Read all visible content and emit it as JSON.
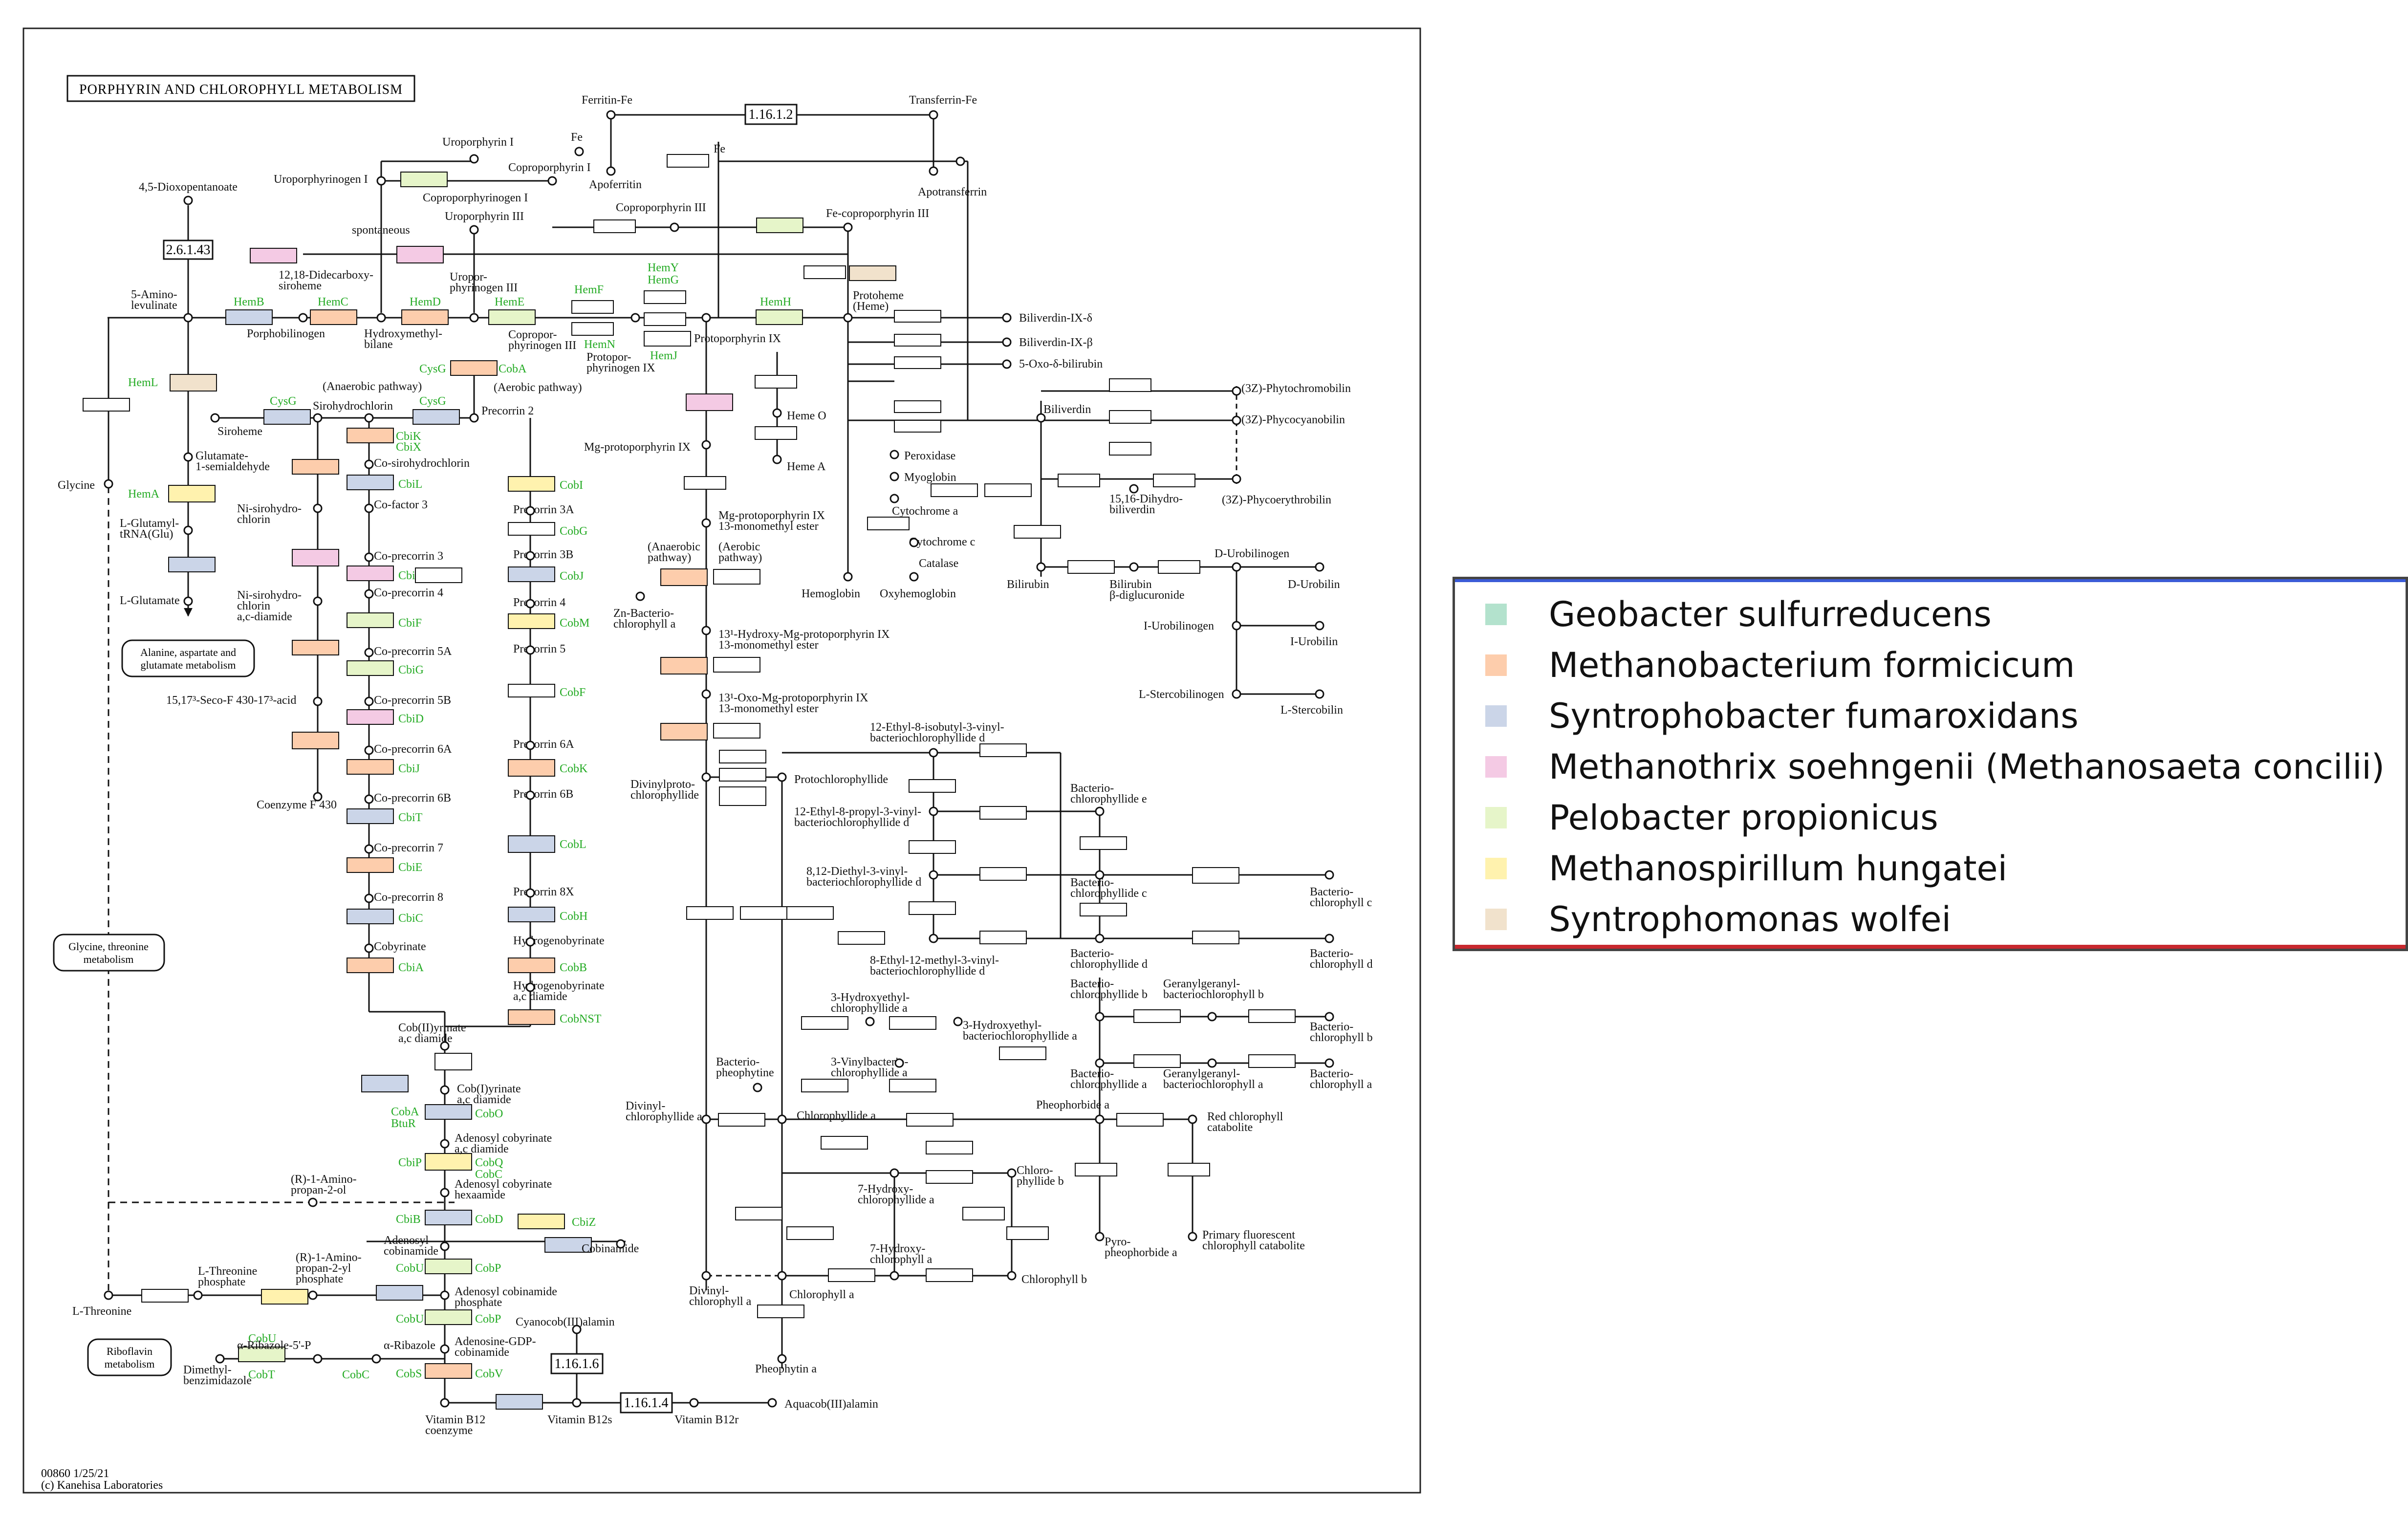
{
  "title": "PORPHYRIN AND CHLOROPHYLL METABOLISM",
  "footer": {
    "code": "00860 1/25/21",
    "copyright": "(c) Kanehisa Laboratories"
  },
  "colors": {
    "geobacter": "#b3e2cd",
    "methanobacterium": "#fdcdac",
    "syntrophobacter": "#cbd5e8",
    "methanothrix": "#f4cae4",
    "pelobacter": "#e6f5c9",
    "methanospirillum": "#fff2ae",
    "syntrophomonas": "#f1e2cc",
    "gene_label": "#22aa22",
    "legend_top": "#3b5bd6",
    "legend_bottom": "#c8282e"
  },
  "legend": [
    {
      "name": "Geobacter sulfurreducens",
      "color": "#b3e2cd"
    },
    {
      "name": "Methanobacterium formicicum",
      "color": "#fdcdac"
    },
    {
      "name": "Syntrophobacter fumaroxidans",
      "color": "#cbd5e8"
    },
    {
      "name": "Methanothrix soehngenii (Methanosaeta concilii)",
      "color": "#f4cae4"
    },
    {
      "name": "Pelobacter propionicus",
      "color": "#e6f5c9"
    },
    {
      "name": "Methanospirillum hungatei",
      "color": "#fff2ae"
    },
    {
      "name": "Syntrophomonas wolfei",
      "color": "#f1e2cc"
    }
  ],
  "compounds": [
    "Ferritin-Fe",
    "Transferrin-Fe",
    "Fe++",
    "Fe+++",
    "Apoferritin",
    "Apotransferrin",
    "Uroporphyrin I",
    "Coproporphyrin I",
    "Uroporphyrinogen I",
    "Coproporphyrinogen I",
    "Uroporphyrin III",
    "Uroporphyrinogen III",
    "Coproporphyrin III",
    "Coproporphyrinogen III",
    "Fe-coproporphyrin III",
    "Protoporphyrinogen IX",
    "Protoporphyrin IX",
    "Protoheme (Heme)",
    "4,5-Dioxopentanoate",
    "5-Aminolevulinate",
    "Porphobilinogen",
    "Hydroxymethylbilane",
    "12,18-Didecarboxysiroheme",
    "Siroheme",
    "Sirohydrochlorin",
    "Precorrin 2",
    "Glutamate-1-semialdehyde",
    "L-Glutamyl-tRNA(Glu)",
    "L-Glutamate",
    "Glycine",
    "L-Threonine",
    "Biliverdin-IX-δ",
    "Biliverdin-IX-β",
    "5-Oxo-δ-bilirubin",
    "Biliverdin",
    "(3Z)-Phytochromobilin",
    "(3Z)-Phycocyanobilin",
    "(3Z)-Phycoerythrobilin",
    "15,16-Dihydrobiliverdin",
    "Heme O",
    "Heme A",
    "Peroxidase",
    "Myoglobin",
    "Cytochrome a",
    "Cytochrome c",
    "Catalase",
    "Hemoglobin",
    "Oxyhemoglobin",
    "Bilirubin",
    "Bilirubin β-diglucuronide",
    "D-Urobilinogen",
    "D-Urobilin",
    "I-Urobilinogen",
    "I-Urobilin",
    "L-Stercobilinogen",
    "L-Stercobilin",
    "Mg-protoporphyrin IX",
    "Mg-protoporphyrin IX 13-monomethyl ester",
    "Zn-Bacteriochlorophyll a",
    "Divinylprotochlorophyllide",
    "Protochlorophyllide",
    "Bacteriochlorophyllide a",
    "Bacteriochlorophyll a",
    "Bacteriochlorophyll b",
    "Bacteriochlorophyll c",
    "Bacteriochlorophyll d",
    "Bacteriochlorophyll e",
    "Bacteriopheophytine",
    "Divinylchlorophyllide a",
    "Chlorophyllide a",
    "Pheophorbide a",
    "Red chlorophyll catabolite",
    "Primary fluorescent chlorophyll catabolite",
    "Pyropheophorbide a",
    "7-Hydroxychlorophyllide a",
    "Chlorophyllide b",
    "7-Hydroxychlorophyll a",
    "Chlorophyll b",
    "Divinylchlorophyll a",
    "Chlorophyll a",
    "Pheophytin a",
    "Precorrin 3A",
    "Precorrin 3B",
    "Precorrin 4",
    "Precorrin 5",
    "Precorrin 6A",
    "Precorrin 6B",
    "Precorrin 8X",
    "Hydrogenobyrinate",
    "Hydrogenobyrinate a,c diamide",
    "Co-sirohydrochlorin",
    "Co-precorrin 3",
    "Co-precorrin 4",
    "Co-precorrin 5A",
    "Co-precorrin 5B",
    "Co-precorrin 6A",
    "Co-precorrin 6B",
    "Co-precorrin 7",
    "Co-precorrin 8",
    "Cobyrinate",
    "Cob(II)yrinate a,c diamide",
    "Cob(I)yrinate a,c diamide",
    "Adenosyl cobyrinate a,c diamide",
    "Adenosyl cobyrinate hexaamide",
    "Adenosyl cobinamide",
    "Adenosyl cobinamide phosphate",
    "Adenosine-GDP-cobinamide",
    "Cobinamide",
    "Vitamin B12 coenzyme",
    "Vitamin B12s",
    "Vitamin B12r",
    "Aquacob(III)alamin",
    "Cyanocob(III)alamin",
    "Ni-sirohydrochlorin",
    "Ni-sirohydrochlorin a,c-diamide",
    "15,17³-Seco-F 430-17³-acid",
    "Coenzyme F 430",
    "L-Threonine phosphate",
    "(R)-1-Aminopropan-2-ol",
    "(R)-1-Aminopropan-2-yl phosphate",
    "α-Ribazole-5'-P",
    "α-Ribazole",
    "Dimethylbenzimidazole"
  ],
  "genes": [
    "HemB",
    "HemC",
    "HemD",
    "HemE",
    "HemF",
    "HemY",
    "HemG",
    "HemH",
    "HemN",
    "HemJ",
    "HemL",
    "HemA",
    "CysG",
    "CbiK",
    "CbiX",
    "CobA",
    "CbiL",
    "CbiH",
    "CbiF",
    "CbiG",
    "CbiD",
    "CbiJ",
    "CbiT",
    "CbiE",
    "CbiC",
    "CbiA",
    "CobI",
    "CobG",
    "CobJ",
    "CobM",
    "CobF",
    "CobK",
    "CobL",
    "CobH",
    "CobB",
    "CobNST",
    "CobO",
    "BtuR",
    "CobQ",
    "CbiP",
    "CobC",
    "CobD",
    "CbiB",
    "CbiZ",
    "CobU",
    "CobP",
    "CobS",
    "CobV",
    "CobT"
  ],
  "boxes": {
    "ec_2_6_1_43": "2.6.1.43",
    "ec_1_16_1_2": "1.16.1.2",
    "ec_1_16_1_6": "1.16.1.6",
    "ec_1_16_1_4": "1.16.1.4"
  },
  "notes": {
    "spontaneous": "spontaneous",
    "anaerobic": "(Anaerobic pathway)",
    "aerobic": "(Aerobic pathway)",
    "map_alanine": "Alanine, aspartate and glutamate metabolism",
    "map_glycine": "Glycine, threonine metabolism",
    "map_riboflavin": "Riboflavin metabolism"
  }
}
